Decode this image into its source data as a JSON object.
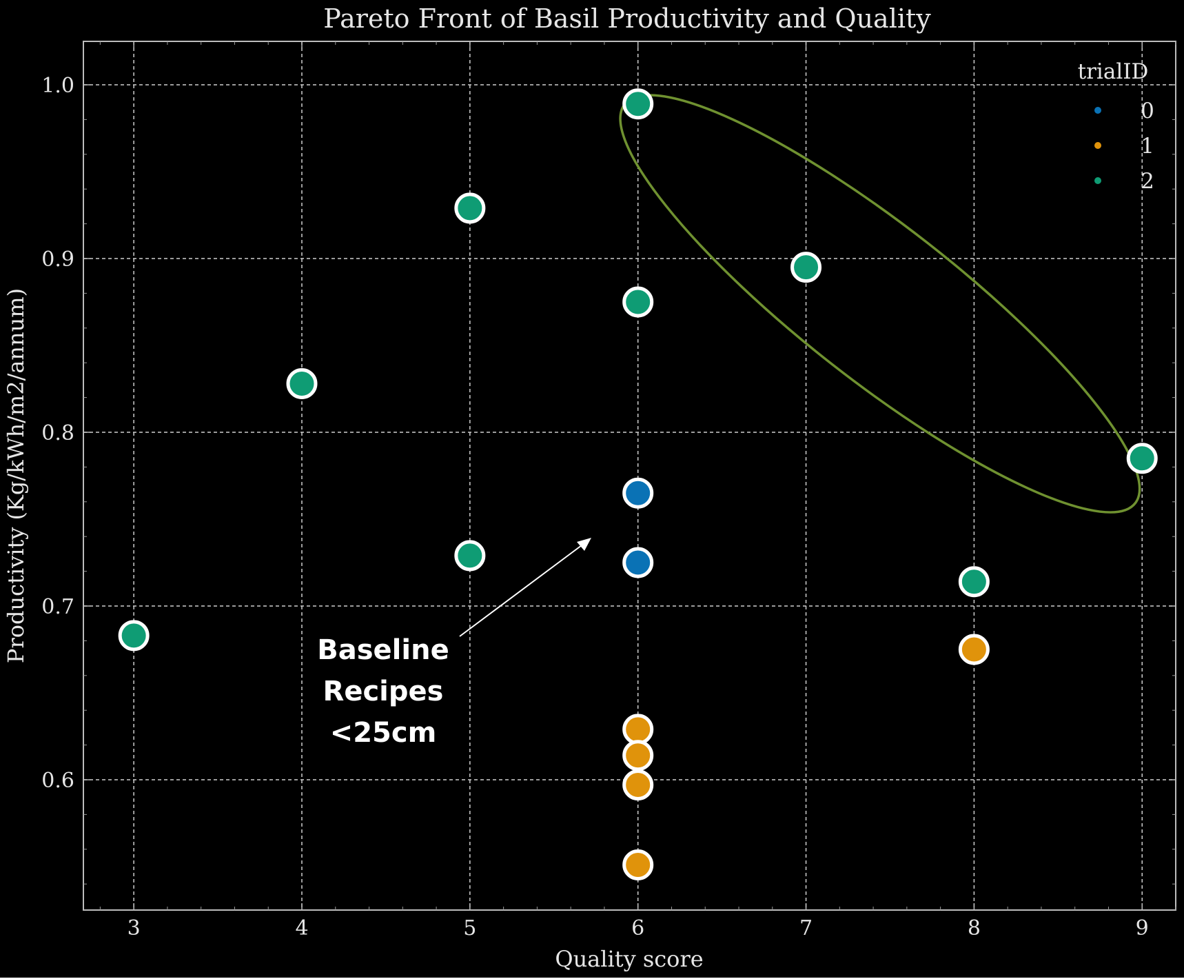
{
  "chart_data": {
    "type": "scatter",
    "title": "Pareto Front of Basil Productivity and Quality",
    "xlabel": "Quality score",
    "ylabel": "Productivity (Kg/kWh/m2/annum)",
    "xlim": [
      2.7,
      9.2
    ],
    "ylim": [
      0.525,
      1.025
    ],
    "x_ticks": [
      3,
      4,
      5,
      6,
      7,
      8,
      9
    ],
    "y_ticks": [
      0.6,
      0.7,
      0.8,
      0.9,
      1.0
    ],
    "y_tick_labels": [
      "0.6",
      "0.7",
      "0.8",
      "0.9",
      "1.0"
    ],
    "grid": true,
    "theme": {
      "background": "#000000",
      "foreground": "#e6e6e6",
      "grid": "#cfcfcf"
    },
    "legend": {
      "title": "trialID",
      "placement": "top-right",
      "entries": [
        {
          "label": "0",
          "color": "#0a72b5"
        },
        {
          "label": "1",
          "color": "#e0930b"
        },
        {
          "label": "2",
          "color": "#0f9c74"
        }
      ]
    },
    "series": [
      {
        "name": "0",
        "color": "#0a72b5",
        "x": [
          6,
          6
        ],
        "y": [
          0.765,
          0.725
        ]
      },
      {
        "name": "1",
        "color": "#e0930b",
        "x": [
          6,
          6,
          6,
          6,
          8
        ],
        "y": [
          0.629,
          0.614,
          0.597,
          0.551,
          0.675
        ]
      },
      {
        "name": "2",
        "color": "#0f9c74",
        "x": [
          3,
          4,
          5,
          5,
          6,
          6,
          7,
          8,
          9
        ],
        "y": [
          0.683,
          0.828,
          0.929,
          0.729,
          0.989,
          0.875,
          0.895,
          0.714,
          0.785
        ]
      }
    ],
    "annotations": {
      "ellipse": {
        "color": "#6f9130",
        "label": ""
      },
      "arrow_text": [
        "Baseline",
        "Recipes",
        "<25cm"
      ]
    }
  }
}
